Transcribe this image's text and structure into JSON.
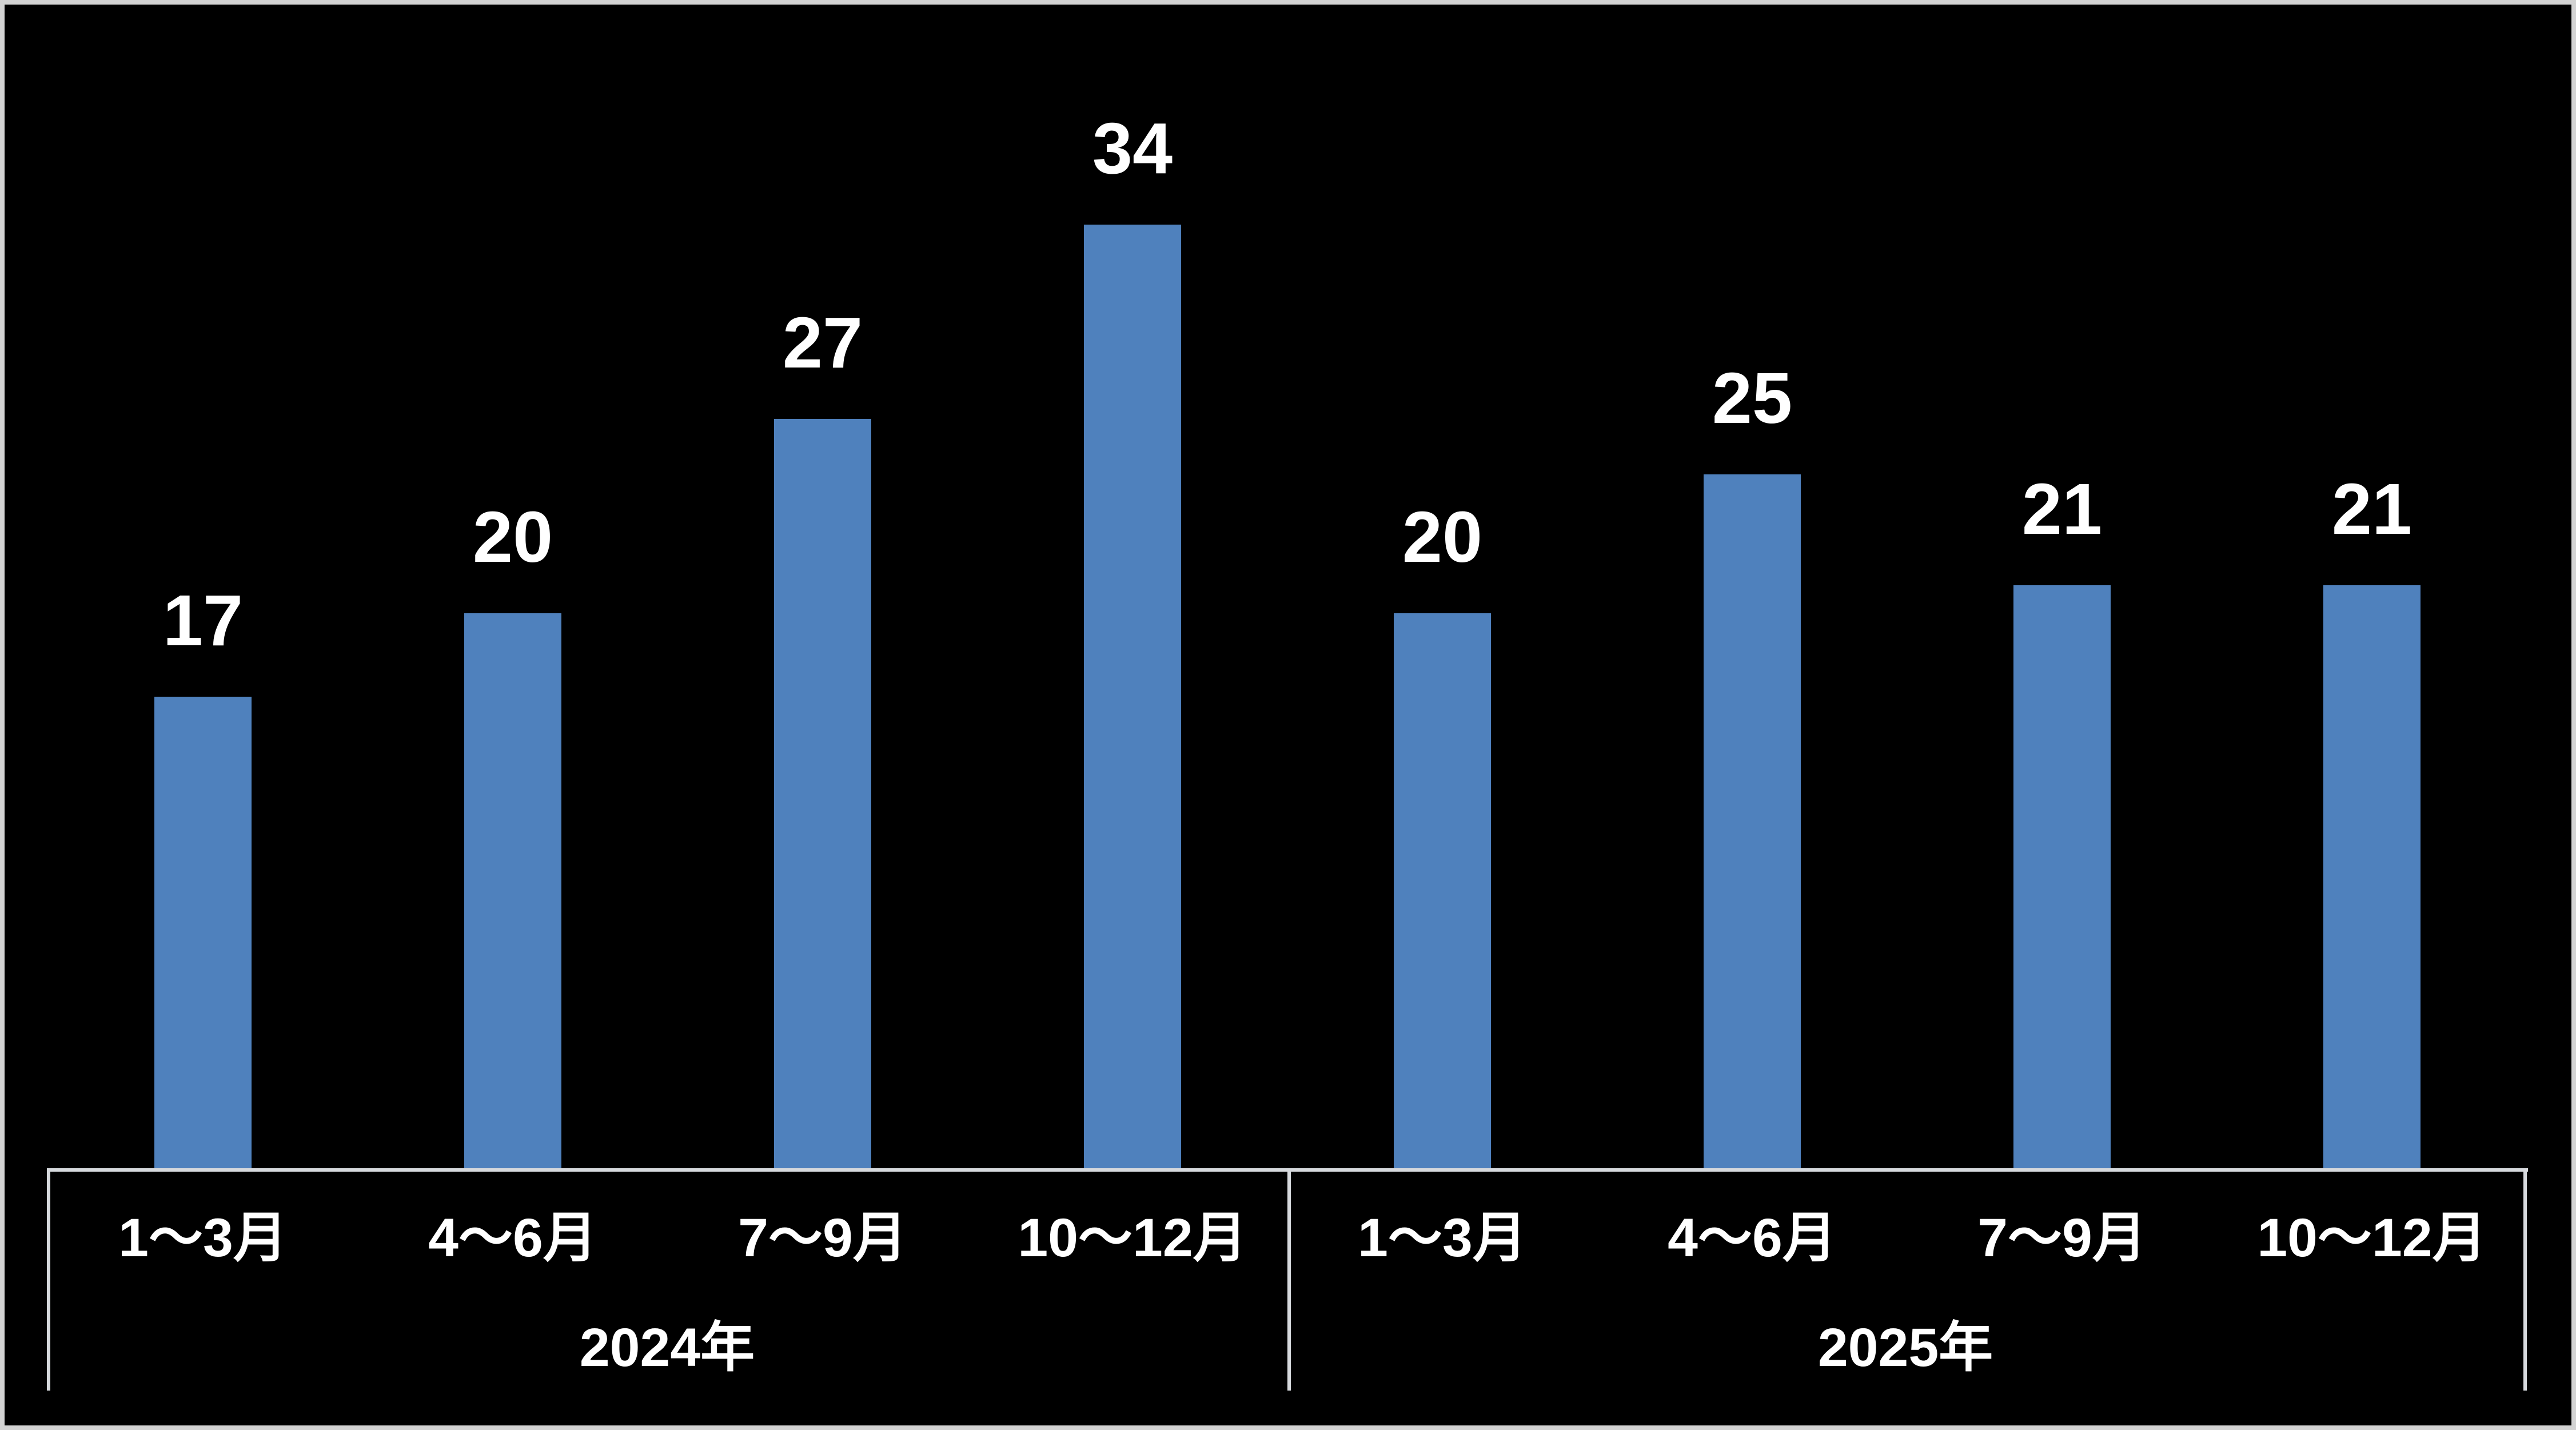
{
  "chart_data": {
    "type": "bar",
    "title": "",
    "categories": [
      "1〜3月",
      "4〜6月",
      "7〜9月",
      "10〜12月",
      "1〜3月",
      "4〜6月",
      "7〜9月",
      "10〜12月"
    ],
    "values": [
      17,
      20,
      27,
      34,
      20,
      25,
      21,
      21
    ],
    "series": [
      {
        "name": "2024年",
        "categories": [
          "1〜3月",
          "4〜6月",
          "7〜9月",
          "10〜12月"
        ],
        "values": [
          17,
          20,
          27,
          34
        ]
      },
      {
        "name": "2025年",
        "categories": [
          "1〜3月",
          "4〜6月",
          "7〜9月",
          "10〜12月"
        ],
        "values": [
          20,
          25,
          21,
          21
        ]
      }
    ],
    "groups": [
      {
        "label": "2024年",
        "start_index": 0,
        "count": 4
      },
      {
        "label": "2025年",
        "start_index": 4,
        "count": 4
      }
    ],
    "xlabel": "",
    "ylabel": "",
    "ylim": [
      0,
      42
    ],
    "data_labels_shown": true,
    "legend": "none",
    "grid": "off",
    "colors": {
      "bar": "#4F81BD",
      "value_label": "#FFFFFF",
      "axis_text": "#FFFFFF",
      "axis_line": "#D6D9DD",
      "background": "#000000",
      "frame_border": "#D3D3D3"
    }
  }
}
